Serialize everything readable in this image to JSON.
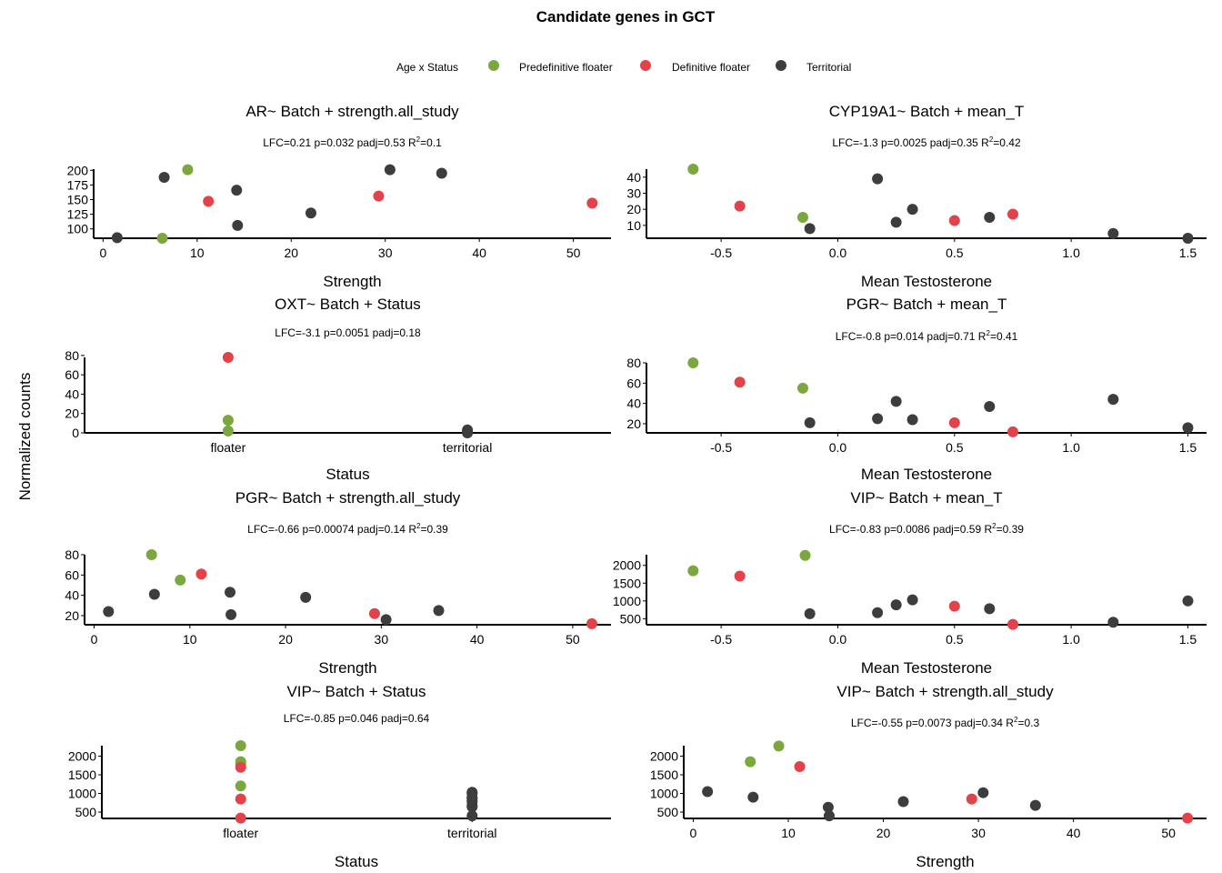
{
  "title": "Candidate genes in GCT",
  "ylabel": "Normalized counts",
  "legend": {
    "title": "Age x Status",
    "placement": "top",
    "items": [
      {
        "label": "Predefinitive floater",
        "color": "#7aa83c"
      },
      {
        "label": "Definitive floater",
        "color": "#e2424a"
      },
      {
        "label": "Territorial",
        "color": "#3d3d3d"
      }
    ]
  },
  "chart_data": [
    {
      "type": "scatter",
      "title": "AR~ Batch + strength.all_study",
      "stats": [
        "LFC=0.21 p=0.032 padj=0.53 R",
        "2",
        "=0.1"
      ],
      "xlabel": "Strength",
      "xticks": [
        "0",
        "10",
        "20",
        "30",
        "40",
        "50"
      ],
      "xtick_values": [
        0,
        10,
        20,
        30,
        40,
        50
      ],
      "yticks": [
        "100",
        "125",
        "150",
        "175",
        "200"
      ],
      "ytick_values": [
        100,
        125,
        150,
        175,
        200
      ],
      "xlim": [
        -1,
        54
      ],
      "ylim": [
        84,
        202
      ],
      "points": [
        [
          1.5,
          85,
          2
        ],
        [
          6.3,
          84,
          0
        ],
        [
          6.5,
          188,
          2
        ],
        [
          9,
          201,
          0
        ],
        [
          11.2,
          147,
          1
        ],
        [
          14.2,
          166,
          2
        ],
        [
          14.3,
          106,
          2
        ],
        [
          22.1,
          127,
          2
        ],
        [
          29.3,
          156,
          1
        ],
        [
          30.5,
          201,
          2
        ],
        [
          36,
          195,
          2
        ],
        [
          52,
          144,
          1
        ]
      ]
    },
    {
      "type": "scatter",
      "title": "CYP19A1~ Batch + mean_T",
      "stats": [
        "LFC=-1.3 p=0.0025 padj=0.35 R",
        "2",
        "=0.42"
      ],
      "xlabel": "Mean Testosterone",
      "xticks": [
        "-0.5",
        "0.0",
        "0.5",
        "1.0",
        "1.5"
      ],
      "xtick_values": [
        -0.5,
        0,
        0.5,
        1,
        1.5
      ],
      "yticks": [
        "10",
        "20",
        "30",
        "40"
      ],
      "ytick_values": [
        10,
        20,
        30,
        40
      ],
      "xlim": [
        -0.82,
        1.58
      ],
      "ylim": [
        2,
        45
      ],
      "points": [
        [
          -0.62,
          45,
          0
        ],
        [
          -0.42,
          22,
          1
        ],
        [
          -0.15,
          15,
          0
        ],
        [
          -0.12,
          8,
          2
        ],
        [
          0.17,
          39,
          2
        ],
        [
          0.25,
          12,
          2
        ],
        [
          0.32,
          20,
          2
        ],
        [
          0.5,
          13,
          1
        ],
        [
          0.65,
          15,
          2
        ],
        [
          0.75,
          17,
          1
        ],
        [
          1.18,
          5,
          2
        ],
        [
          1.5,
          2,
          2
        ]
      ]
    },
    {
      "type": "scatter",
      "title": "OXT~ Batch + Status",
      "stats": [
        "LFC=-3.1 p=0.0051 padj=0.18"
      ],
      "xlabel": "Status",
      "categories": [
        "floater",
        "territorial"
      ],
      "xticks": [
        "floater",
        "territorial"
      ],
      "xtick_values": [
        0,
        1
      ],
      "yticks": [
        "0",
        "20",
        "40",
        "60",
        "80"
      ],
      "ytick_values": [
        0,
        20,
        40,
        60,
        80
      ],
      "xlim": [
        -0.6,
        1.6
      ],
      "ylim": [
        0,
        78
      ],
      "points": [
        [
          0,
          78,
          1
        ],
        [
          0,
          13,
          0
        ],
        [
          0,
          2,
          0
        ],
        [
          1,
          3,
          2
        ],
        [
          1,
          1,
          2
        ],
        [
          1,
          0,
          2
        ]
      ]
    },
    {
      "type": "scatter",
      "title": "PGR~ Batch + mean_T",
      "stats": [
        "LFC=-0.8 p=0.014 padj=0.71 R",
        "2",
        "=0.41"
      ],
      "xlabel": "Mean Testosterone",
      "xticks": [
        "-0.5",
        "0.0",
        "0.5",
        "1.0",
        "1.5"
      ],
      "xtick_values": [
        -0.5,
        0,
        0.5,
        1,
        1.5
      ],
      "yticks": [
        "20",
        "40",
        "60",
        "80"
      ],
      "ytick_values": [
        20,
        40,
        60,
        80
      ],
      "xlim": [
        -0.82,
        1.58
      ],
      "ylim": [
        11,
        80
      ],
      "points": [
        [
          -0.62,
          80,
          0
        ],
        [
          -0.42,
          61,
          1
        ],
        [
          -0.15,
          55,
          0
        ],
        [
          -0.12,
          21,
          2
        ],
        [
          0.17,
          25,
          2
        ],
        [
          0.25,
          42,
          2
        ],
        [
          0.32,
          24,
          2
        ],
        [
          0.5,
          21,
          1
        ],
        [
          0.65,
          37,
          2
        ],
        [
          0.75,
          12,
          1
        ],
        [
          1.18,
          44,
          2
        ],
        [
          1.5,
          16,
          2
        ]
      ]
    },
    {
      "type": "scatter",
      "title": "PGR~ Batch + strength.all_study",
      "stats": [
        "LFC=-0.66 p=0.00074 padj=0.14 R",
        "2",
        "=0.39"
      ],
      "xlabel": "Strength",
      "xticks": [
        "0",
        "10",
        "20",
        "30",
        "40",
        "50"
      ],
      "xtick_values": [
        0,
        10,
        20,
        30,
        40,
        50
      ],
      "yticks": [
        "20",
        "40",
        "60",
        "80"
      ],
      "ytick_values": [
        20,
        40,
        60,
        80
      ],
      "xlim": [
        -1,
        54
      ],
      "ylim": [
        11,
        80
      ],
      "points": [
        [
          1.5,
          24,
          2
        ],
        [
          6,
          80,
          0
        ],
        [
          6.3,
          41,
          2
        ],
        [
          9,
          55,
          0
        ],
        [
          11.2,
          61,
          1
        ],
        [
          14.2,
          43,
          2
        ],
        [
          14.3,
          21,
          2
        ],
        [
          22.1,
          38,
          2
        ],
        [
          29.3,
          22,
          1
        ],
        [
          30.5,
          16,
          2
        ],
        [
          36,
          25,
          2
        ],
        [
          52,
          12,
          1
        ]
      ]
    },
    {
      "type": "scatter",
      "title": "VIP~ Batch + mean_T",
      "stats": [
        "LFC=-0.83 p=0.0086 padj=0.59 R",
        "2",
        "=0.39"
      ],
      "xlabel": "Mean Testosterone",
      "xticks": [
        "-0.5",
        "0.0",
        "0.5",
        "1.0",
        "1.5"
      ],
      "xtick_values": [
        -0.5,
        0,
        0.5,
        1,
        1.5
      ],
      "yticks": [
        "500",
        "1000",
        "1500",
        "2000"
      ],
      "ytick_values": [
        500,
        1000,
        1500,
        2000
      ],
      "xlim": [
        -0.82,
        1.58
      ],
      "ylim": [
        330,
        2300
      ],
      "points": [
        [
          -0.62,
          1850,
          0
        ],
        [
          -0.42,
          1700,
          1
        ],
        [
          -0.14,
          2280,
          0
        ],
        [
          -0.12,
          640,
          2
        ],
        [
          0.17,
          670,
          2
        ],
        [
          0.25,
          890,
          2
        ],
        [
          0.32,
          1030,
          2
        ],
        [
          0.5,
          850,
          1
        ],
        [
          0.65,
          780,
          2
        ],
        [
          0.75,
          340,
          1
        ],
        [
          1.18,
          400,
          2
        ],
        [
          1.5,
          1000,
          2
        ]
      ]
    },
    {
      "type": "scatter",
      "title": "VIP~ Batch + Status",
      "stats": [
        "LFC=-0.85 p=0.046 padj=0.64"
      ],
      "xlabel": "Status",
      "categories": [
        "floater",
        "territorial"
      ],
      "xticks": [
        "floater",
        "territorial"
      ],
      "xtick_values": [
        0,
        1
      ],
      "yticks": [
        "500",
        "1000",
        "1500",
        "2000"
      ],
      "ytick_values": [
        500,
        1000,
        1500,
        2000
      ],
      "xlim": [
        -0.6,
        1.6
      ],
      "ylim": [
        330,
        2280
      ],
      "points": [
        [
          0,
          2280,
          0
        ],
        [
          0,
          1850,
          0
        ],
        [
          0,
          1780,
          0
        ],
        [
          0,
          1700,
          1
        ],
        [
          0,
          1200,
          0
        ],
        [
          0,
          850,
          1
        ],
        [
          0,
          340,
          1
        ],
        [
          1,
          1030,
          2
        ],
        [
          1,
          1000,
          2
        ],
        [
          1,
          890,
          2
        ],
        [
          1,
          850,
          2
        ],
        [
          1,
          780,
          2
        ],
        [
          1,
          670,
          2
        ],
        [
          1,
          640,
          2
        ],
        [
          1,
          400,
          2
        ]
      ]
    },
    {
      "type": "scatter",
      "title": "VIP~ Batch + strength.all_study",
      "stats": [
        "LFC=-0.55 p=0.0073 padj=0.34 R",
        "2",
        "=0.3"
      ],
      "xlabel": "Strength",
      "xticks": [
        "0",
        "10",
        "20",
        "30",
        "40",
        "50"
      ],
      "xtick_values": [
        0,
        10,
        20,
        30,
        40,
        50
      ],
      "yticks": [
        "500",
        "1000",
        "1500",
        "2000"
      ],
      "ytick_values": [
        500,
        1000,
        1500,
        2000
      ],
      "xlim": [
        -1,
        54
      ],
      "ylim": [
        330,
        2280
      ],
      "points": [
        [
          1.5,
          1050,
          2
        ],
        [
          6,
          1850,
          0
        ],
        [
          6.3,
          900,
          2
        ],
        [
          9,
          2270,
          0
        ],
        [
          11.2,
          1720,
          1
        ],
        [
          14.2,
          630,
          2
        ],
        [
          14.3,
          400,
          2
        ],
        [
          22.1,
          780,
          2
        ],
        [
          29.3,
          850,
          1
        ],
        [
          30.5,
          1020,
          2
        ],
        [
          36,
          680,
          2
        ],
        [
          52,
          340,
          1
        ]
      ]
    }
  ]
}
